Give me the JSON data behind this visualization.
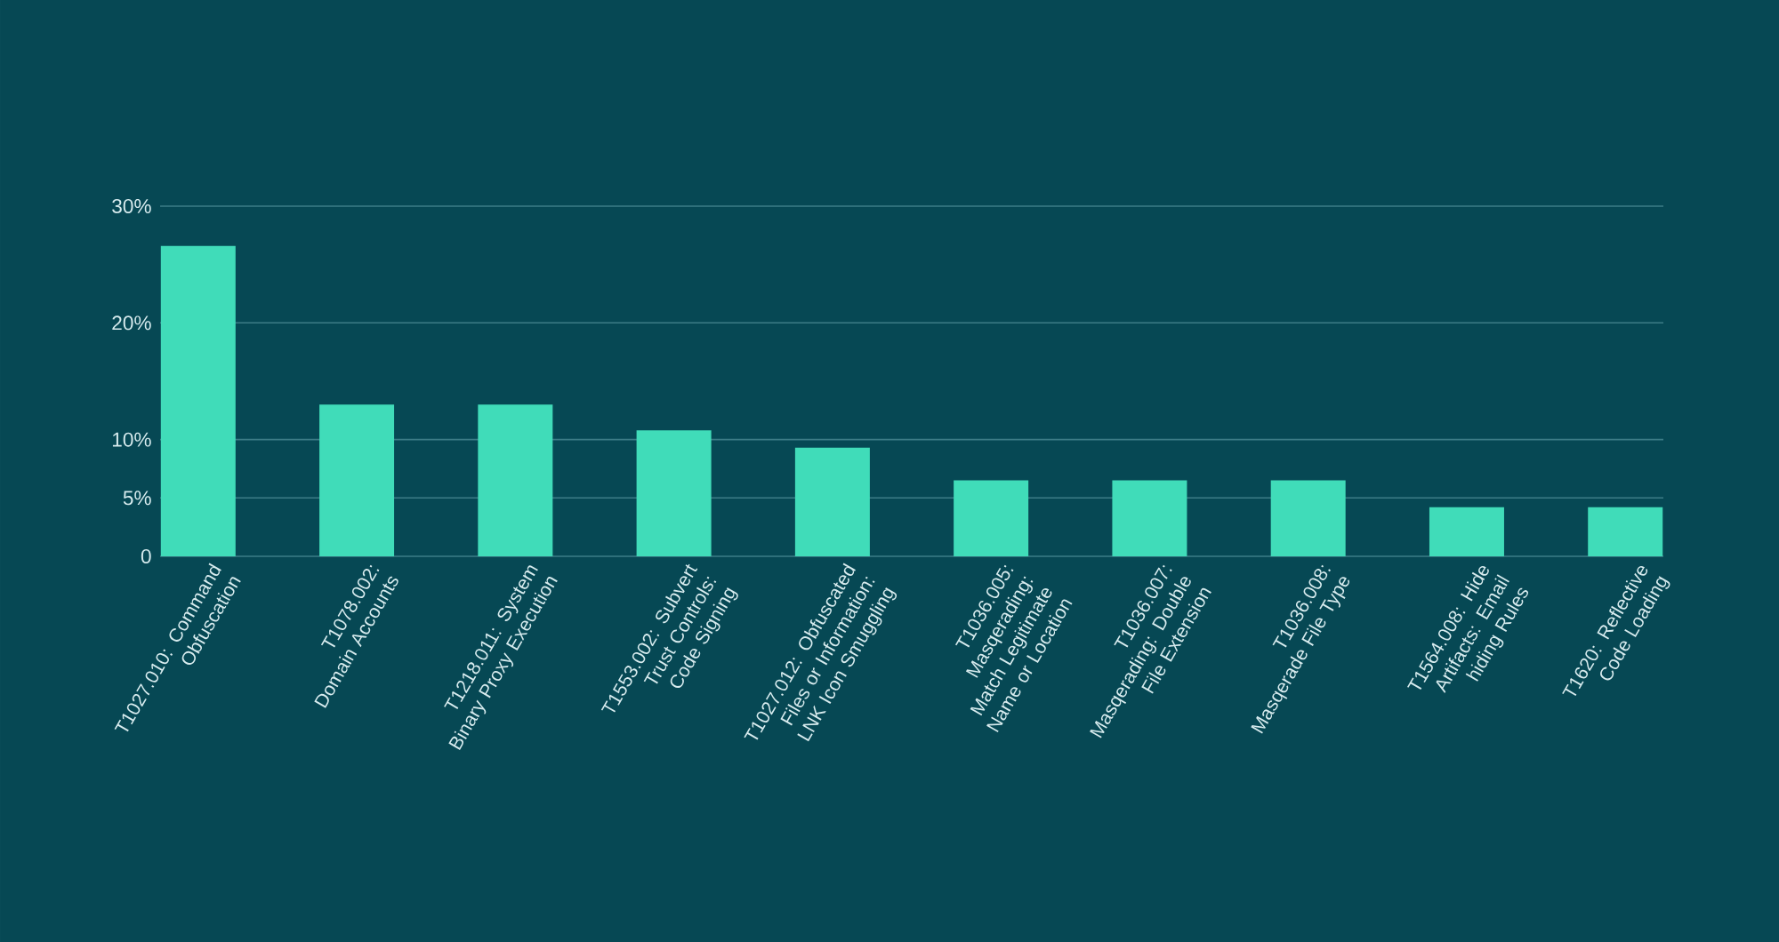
{
  "chart_data": {
    "type": "bar",
    "categories": [
      "T1027.010: Command Obfuscation",
      "T1078.002: Domain Accounts",
      "T1218.011: System Binary Proxy Execution",
      "T1553.002: Subvert Trust Controls: Code Signing",
      "T1027.012: Obfuscated Files or Information: LNK Icon Smuggling",
      "T1036.005: Masqerading: Match Legitimate Name or Location",
      "T1036.007: Masqerading: Double File Extension",
      "T1036.008: Masqerade File Type",
      "T1564.008: Hide Artifacts: Email hiding Rules",
      "T1620: Reflective Code Loading"
    ],
    "values": [
      26.6,
      13,
      13,
      10.8,
      9.3,
      6.5,
      6.5,
      6.5,
      4.2,
      4.2
    ],
    "color": "#40dcb9",
    "ylim": [
      0,
      30
    ],
    "yticks": [
      0,
      {
        "value": 5,
        "label": "5%"
      },
      {
        "value": 10,
        "label": "10%"
      },
      {
        "value": 20,
        "label": "20%"
      },
      {
        "value": 30,
        "label": "30%"
      }
    ],
    "grid": "y"
  }
}
